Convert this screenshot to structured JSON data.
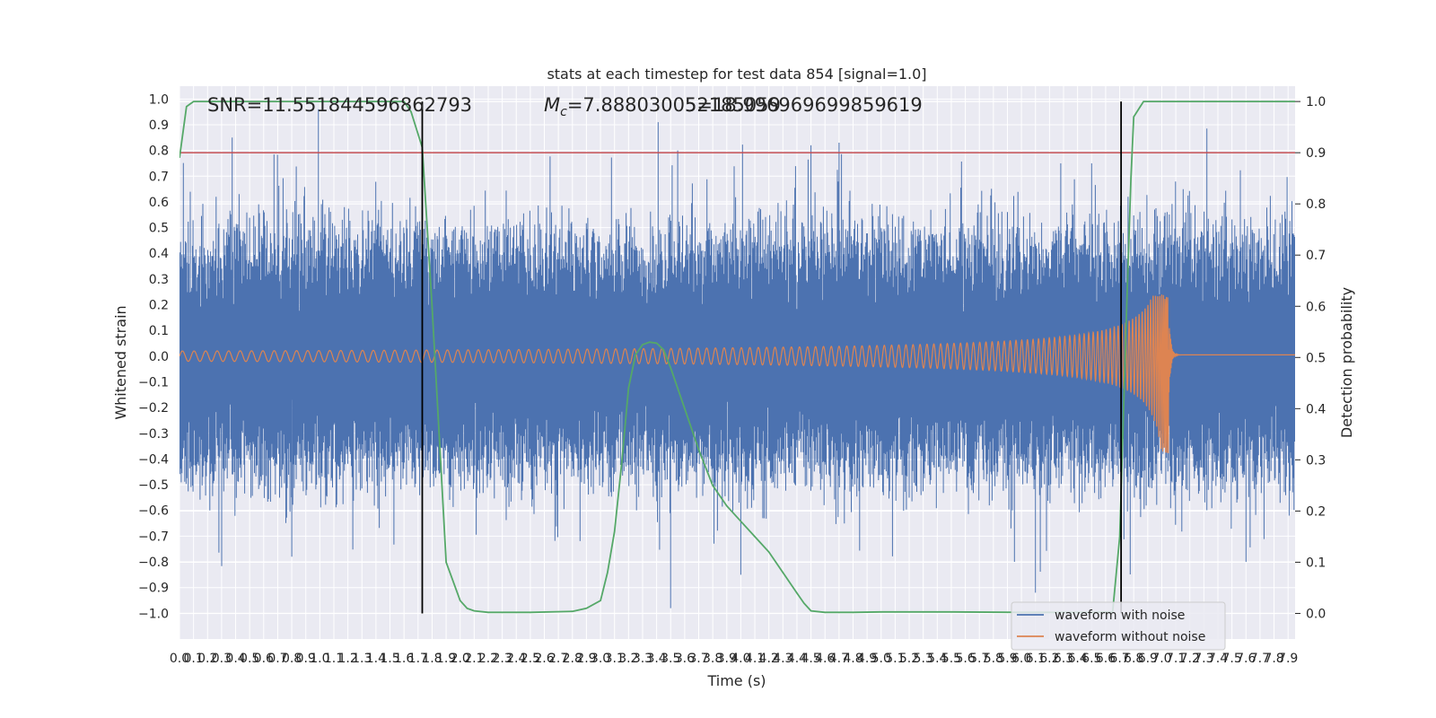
{
  "chart_data": {
    "type": "line",
    "title": "stats at each timestep for test data 854 [signal=1.0]",
    "xlabel": "Time (s)",
    "ylabel": "Whitened strain",
    "y2label": "Detection probability",
    "xlim": [
      0.0,
      7.95
    ],
    "ylim": [
      -1.1,
      1.05
    ],
    "y2lim": [
      -0.05,
      1.03
    ],
    "x_tick_step": 0.1,
    "y_tick_step": 0.1,
    "y2_tick_step": 0.1,
    "grid": true,
    "legend_position": "lower-right",
    "annotations": {
      "snr": "SNR=11.551844596862793",
      "mc": "=7.888030052185059",
      "mc_symbol": "M",
      "mc_subscript": "c",
      "extra": "5=18.996969699859619"
    },
    "threshold": {
      "value": 0.9,
      "axis": "right",
      "color": "#c44e52"
    },
    "vlines": [
      1.73,
      6.71
    ],
    "series": [
      {
        "name": "waveform with noise",
        "color": "#4c72b0",
        "envelope": {
          "p95_amplitude": 0.45,
          "max_amplitude": 0.97,
          "segments": 1600
        },
        "spikes": [
          [
            0.99,
            0.96
          ],
          [
            3.55,
            0.8
          ],
          [
            4.5,
            0.82
          ],
          [
            4.7,
            0.83
          ],
          [
            6.28,
            0.75
          ],
          [
            6.5,
            0.75
          ],
          [
            3.5,
            -0.98
          ],
          [
            6.1,
            -0.92
          ],
          [
            4.0,
            -0.85
          ],
          [
            0.8,
            -0.78
          ],
          [
            5.95,
            -0.8
          ],
          [
            7.6,
            -0.8
          ]
        ]
      },
      {
        "name": "waveform without noise",
        "color": "#dd8452",
        "chirp": {
          "base_amplitude": 0.02,
          "peak_time": 7.05,
          "peak_max": 0.24,
          "peak_min": -0.38,
          "f_start": 12,
          "f_end": 260,
          "post_amplitude": 0.005
        }
      },
      {
        "name": "detection probability",
        "color": "#55a868",
        "axis": "right",
        "x": [
          0.0,
          0.05,
          0.1,
          0.2,
          0.5,
          1.0,
          1.5,
          1.6,
          1.65,
          1.73,
          1.8,
          1.85,
          1.9,
          2.0,
          2.05,
          2.1,
          2.2,
          2.5,
          2.8,
          2.9,
          3.0,
          3.05,
          3.1,
          3.15,
          3.2,
          3.25,
          3.3,
          3.35,
          3.4,
          3.45,
          3.5,
          3.6,
          3.7,
          3.8,
          3.9,
          4.0,
          4.1,
          4.2,
          4.3,
          4.4,
          4.45,
          4.5,
          4.6,
          4.8,
          5.0,
          5.5,
          6.0,
          6.5,
          6.65,
          6.7,
          6.75,
          6.78,
          6.8,
          6.87,
          7.0,
          7.2,
          7.5,
          7.95
        ],
        "y": [
          0.89,
          0.99,
          1.0,
          1.0,
          1.0,
          1.0,
          1.0,
          1.0,
          0.98,
          0.91,
          0.6,
          0.35,
          0.1,
          0.025,
          0.01,
          0.005,
          0.002,
          0.002,
          0.004,
          0.01,
          0.025,
          0.08,
          0.16,
          0.29,
          0.44,
          0.505,
          0.525,
          0.53,
          0.528,
          0.515,
          0.48,
          0.4,
          0.32,
          0.25,
          0.21,
          0.18,
          0.15,
          0.12,
          0.08,
          0.04,
          0.02,
          0.005,
          0.002,
          0.002,
          0.003,
          0.003,
          0.002,
          0.002,
          0.003,
          0.15,
          0.6,
          0.85,
          0.97,
          1.0,
          1.0,
          1.0,
          1.0,
          1.0
        ]
      }
    ]
  }
}
